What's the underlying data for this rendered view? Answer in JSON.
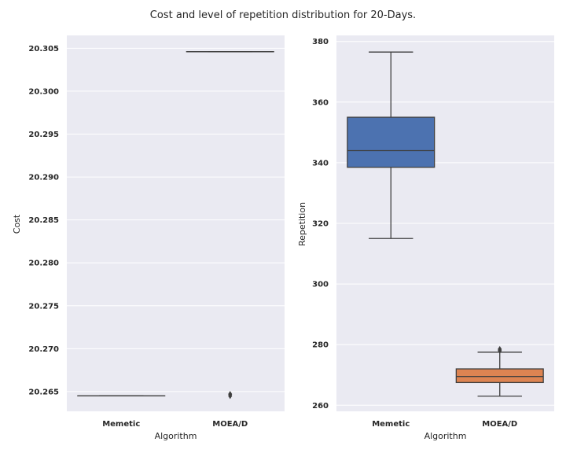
{
  "figure": {
    "title": "Cost and level of repetition distribution for 20-Days."
  },
  "chart_data": [
    {
      "type": "box",
      "xlabel": "Algorithm",
      "ylabel": "Cost",
      "ylim": [
        20.2627,
        20.3065
      ],
      "yticks": [
        "20.265",
        "20.270",
        "20.275",
        "20.280",
        "20.285",
        "20.290",
        "20.295",
        "20.300",
        "20.305"
      ],
      "grid": true,
      "categories": [
        "Memetic",
        "MOEA/D"
      ],
      "boxes": [
        {
          "category": "Memetic",
          "whisker_low": 20.2645,
          "q1": 20.2645,
          "median": 20.2645,
          "q3": 20.2645,
          "whisker_high": 20.2645,
          "outliers": [],
          "color": "#4c72b0"
        },
        {
          "category": "MOEA/D",
          "whisker_low": 20.3046,
          "q1": 20.3046,
          "median": 20.3046,
          "q3": 20.3046,
          "whisker_high": 20.3046,
          "outliers": [
            20.2647,
            20.2645
          ],
          "color": "#dd8452"
        }
      ]
    },
    {
      "type": "box",
      "xlabel": "Algorithm",
      "ylabel": "Repetition",
      "ylim": [
        258,
        382
      ],
      "yticks": [
        "260",
        "280",
        "300",
        "320",
        "340",
        "360",
        "380"
      ],
      "grid": true,
      "categories": [
        "Memetic",
        "MOEA/D"
      ],
      "boxes": [
        {
          "category": "Memetic",
          "whisker_low": 315,
          "q1": 338.5,
          "median": 344,
          "q3": 355,
          "whisker_high": 376.5,
          "outliers": [],
          "color": "#4c72b0"
        },
        {
          "category": "MOEA/D",
          "whisker_low": 263,
          "q1": 267.5,
          "median": 269.5,
          "q3": 272,
          "whisker_high": 277.5,
          "outliers": [
            278.5,
            278
          ],
          "color": "#dd8452"
        }
      ]
    }
  ]
}
